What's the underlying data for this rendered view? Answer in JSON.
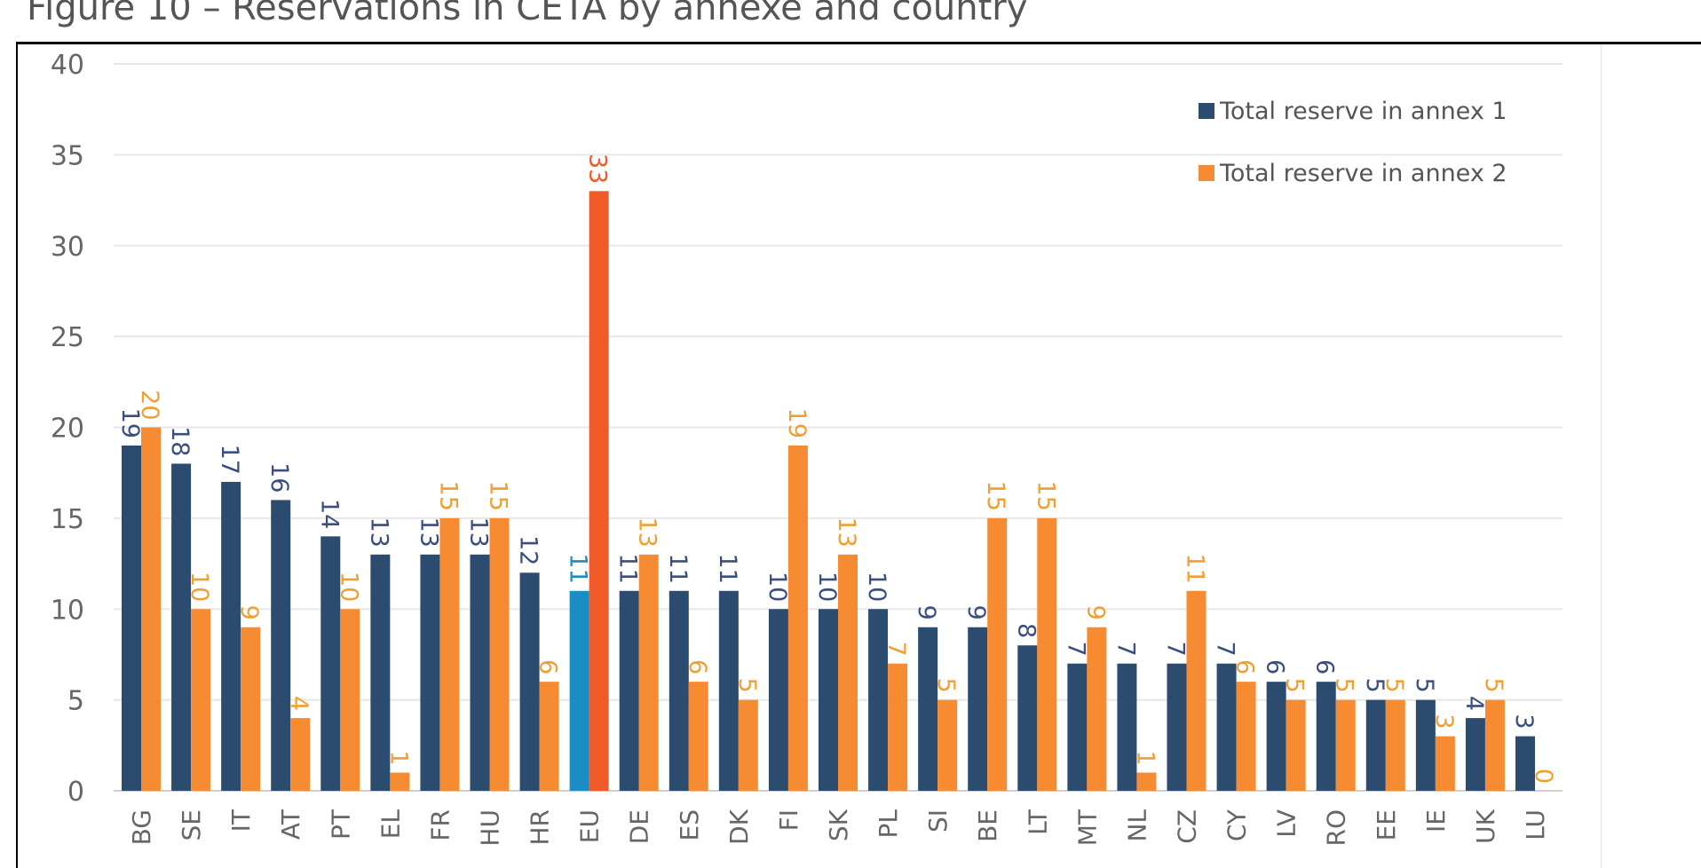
{
  "title": "Figure 10 – Reservations in CETA by annexe and country",
  "chart_data": {
    "type": "bar",
    "title": "Figure 10 – Reservations in CETA by annexe and country",
    "xlabel": "",
    "ylabel": "",
    "ylim": [
      0,
      40
    ],
    "yticks": [
      0,
      5,
      10,
      15,
      20,
      25,
      30,
      35,
      40
    ],
    "grid": true,
    "legend_position": "top-right",
    "categories": [
      "BG",
      "SE",
      "IT",
      "AT",
      "PT",
      "EL",
      "FR",
      "HU",
      "HR",
      "EU",
      "DE",
      "ES",
      "DK",
      "FI",
      "SK",
      "PL",
      "SI",
      "BE",
      "LT",
      "MT",
      "NL",
      "CZ",
      "CY",
      "LV",
      "RO",
      "EE",
      "IE",
      "UK",
      "LU"
    ],
    "series": [
      {
        "name": "Total reserve in annex 1",
        "color": "#2b4b6f",
        "highlight_color": "#1b8dc6",
        "values": [
          19,
          18,
          17,
          16,
          14,
          13,
          13,
          13,
          12,
          11,
          11,
          11,
          11,
          10,
          10,
          10,
          9,
          9,
          8,
          7,
          7,
          7,
          7,
          6,
          6,
          5,
          5,
          4,
          3
        ]
      },
      {
        "name": "Total reserve in annex 2",
        "color": "#f68b31",
        "highlight_color": "#f15a29",
        "values": [
          20,
          10,
          9,
          4,
          10,
          1,
          15,
          15,
          6,
          33,
          13,
          6,
          5,
          19,
          13,
          7,
          5,
          15,
          15,
          9,
          1,
          11,
          6,
          5,
          5,
          5,
          3,
          5,
          0
        ]
      }
    ],
    "highlighted_category": "EU",
    "label_colors": {
      "annex1": "#3a4f80",
      "annex2": "#f0a030"
    }
  }
}
